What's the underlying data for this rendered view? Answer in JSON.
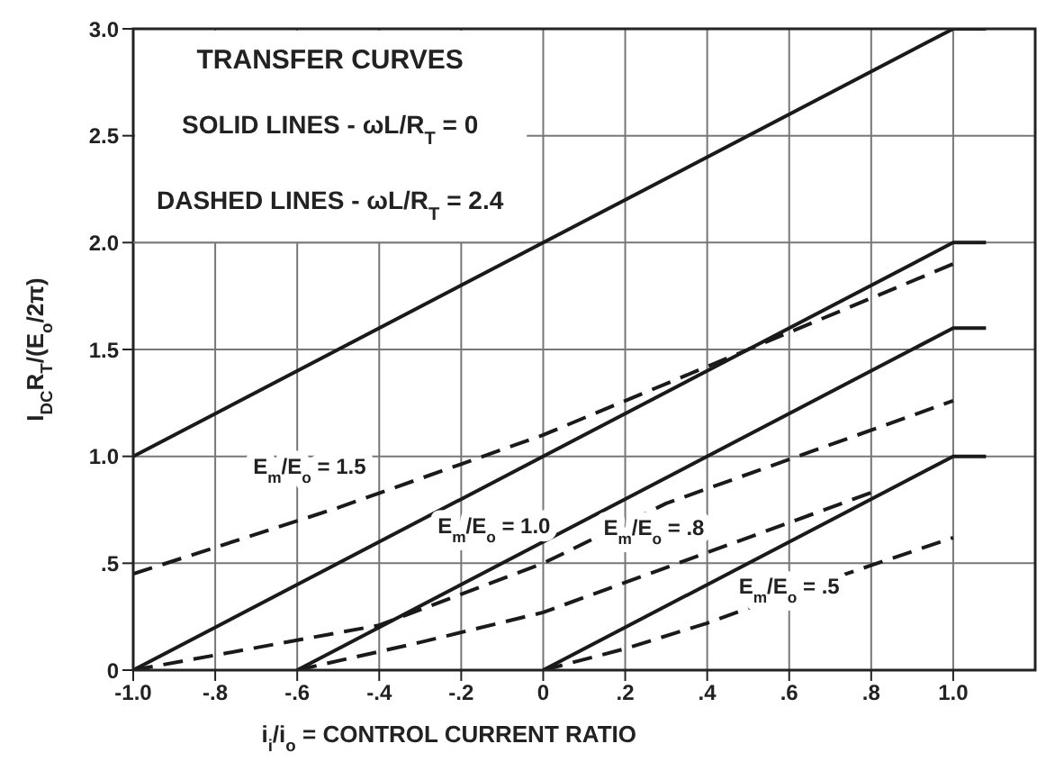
{
  "chart_data": {
    "type": "line",
    "title": "TRANSFER CURVES",
    "xlabel": "i$_{i}$/i$_{o}$ = CONTROL CURRENT RATIO",
    "ylabel": "I$_{DC}$R$_{T}$/(E$_{o}$/2π)",
    "annotations": [
      "SOLID LINES - ωL/R$_{T}$ = 0",
      "DASHED LINES - ωL/R$_{T}$ = 2.4",
      "E$_{m}$/E$_{o}$ = 1.5",
      "E$_{m}$/E$_{o}$ = 1.0",
      "E$_{m}$/E$_{o}$ = .8",
      "E$_{m}$/E$_{o}$ = .5"
    ],
    "series": [
      {
        "color": "#1a1a1a",
        "line_style": "solid",
        "x": [
          -1,
          1,
          1.08
        ],
        "values": [
          1,
          3,
          3
        ]
      },
      {
        "color": "#1a1a1a",
        "line_style": "solid",
        "x": [
          -1,
          1,
          1.08
        ],
        "values": [
          0,
          2,
          2
        ]
      },
      {
        "color": "#1a1a1a",
        "line_style": "solid",
        "x": [
          -0.6,
          1,
          1.08
        ],
        "values": [
          0,
          1.6,
          1.6
        ]
      },
      {
        "color": "#1a1a1a",
        "line_style": "solid",
        "x": [
          0,
          1,
          1.08
        ],
        "values": [
          0,
          1,
          1
        ]
      },
      {
        "color": "#1a1a1a",
        "line_style": "dashed",
        "x": [
          -1,
          -0.5,
          0,
          0.5,
          1
        ],
        "values": [
          0.45,
          0.76,
          1.1,
          1.5,
          1.9
        ]
      },
      {
        "color": "#1a1a1a",
        "line_style": "dashed",
        "x": [
          -1,
          -0.4,
          0,
          0.3,
          1
        ],
        "values": [
          0,
          0.21,
          0.5,
          0.78,
          1.26
        ]
      },
      {
        "color": "#1a1a1a",
        "line_style": "dashed",
        "x": [
          -0.6,
          -0.3,
          0,
          0.2,
          0.4,
          0.6,
          0.8
        ],
        "values": [
          0,
          0.13,
          0.27,
          0.41,
          0.55,
          0.69,
          0.83
        ]
      },
      {
        "color": "#1a1a1a",
        "line_style": "dashed",
        "x": [
          0,
          0.2,
          0.4,
          0.6,
          0.8,
          1
        ],
        "values": [
          0,
          0.1,
          0.22,
          0.36,
          0.49,
          0.62
        ]
      }
    ],
    "xlim": [
      -1,
      1.2
    ],
    "xticks": [
      {
        "value": -1,
        "label": "-1.0"
      },
      {
        "value": -0.8,
        "label": "-.8"
      },
      {
        "value": -0.6,
        "label": "-.6"
      },
      {
        "value": -0.4,
        "label": "-.4"
      },
      {
        "value": -0.2,
        "label": "-.2"
      },
      0,
      {
        "value": 0.2,
        "label": ".2"
      },
      {
        "value": 0.4,
        "label": ".4"
      },
      {
        "value": 0.6,
        "label": ".6"
      },
      {
        "value": 0.8,
        "label": ".8"
      },
      {
        "value": 1,
        "label": "1.0"
      }
    ],
    "ylim": [
      0,
      3
    ],
    "yticks": [
      0,
      {
        "value": 0.5,
        "label": ".5"
      },
      {
        "value": 1,
        "label": "1.0"
      },
      {
        "value": 1.5,
        "label": "1.5"
      },
      {
        "value": 2,
        "label": "2.0"
      },
      {
        "value": 2.5,
        "label": "2.5"
      },
      {
        "value": 3,
        "label": "3.0"
      }
    ],
    "grid": true
  }
}
